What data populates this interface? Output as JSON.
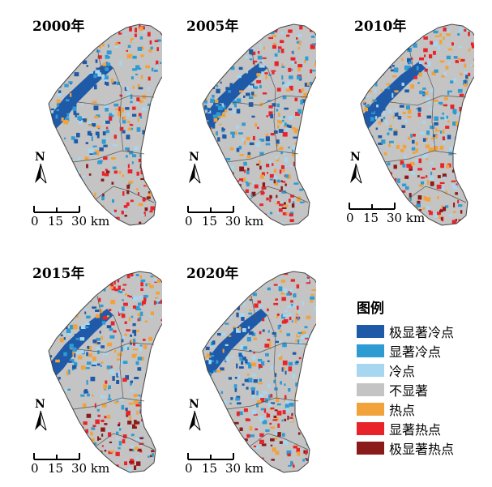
{
  "panels": [
    {
      "year": "2000年"
    },
    {
      "year": "2005年"
    },
    {
      "year": "2010年"
    },
    {
      "year": "2015年"
    },
    {
      "year": "2020年"
    }
  ],
  "north_label": "N",
  "scale": {
    "tick0": "0",
    "tick1": "15",
    "tick2": "30 km"
  },
  "legend": {
    "title": "图例",
    "items": [
      {
        "label": "极显著冷点",
        "color": "#1f5aa8"
      },
      {
        "label": "显著冷点",
        "color": "#2f9bd3"
      },
      {
        "label": "冷点",
        "color": "#a7d7f0"
      },
      {
        "label": "不显著",
        "color": "#c4c4c4"
      },
      {
        "label": "热点",
        "color": "#f2a23a"
      },
      {
        "label": "显著热点",
        "color": "#e8232a"
      },
      {
        "label": "极显著热点",
        "color": "#8b1a1a"
      }
    ]
  }
}
